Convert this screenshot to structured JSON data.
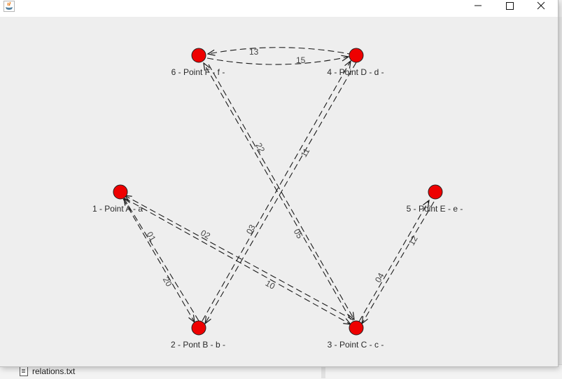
{
  "window": {
    "controls": {
      "minimize": "minimize",
      "maximize": "maximize",
      "close": "close"
    }
  },
  "background": {
    "file_name": "relations.txt"
  },
  "graph": {
    "nodes": [
      {
        "id": 1,
        "label": "1 - Point A - a"
      },
      {
        "id": 2,
        "label": "2 - Pont B - b -"
      },
      {
        "id": 3,
        "label": "3 - Point C - c -"
      },
      {
        "id": 4,
        "label": "4 - Point D - d -"
      },
      {
        "id": 5,
        "label": "5 - Point E - e -"
      },
      {
        "id": 6,
        "label": "6 - Point F - f -"
      }
    ],
    "edge_labels": [
      "13",
      "15",
      "22",
      "11",
      "01",
      "02",
      "20",
      "10",
      "03",
      "05",
      "04",
      "12"
    ],
    "node_color": "#ee0000",
    "edge_color": "#1a1a1a"
  }
}
